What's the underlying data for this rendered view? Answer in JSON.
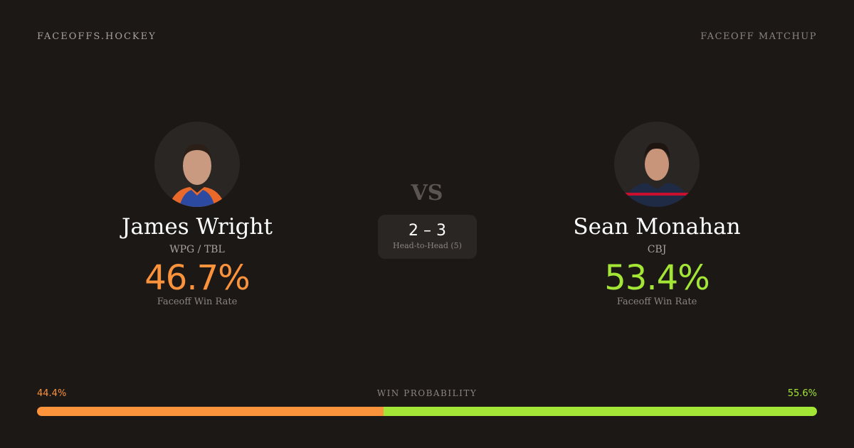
{
  "brand": "FACEOFFS.HOCKEY",
  "page_tag": "FACEOFF MATCHUP",
  "colors": {
    "left": "#fb923c",
    "right": "#a3e635"
  },
  "players": [
    {
      "name": "James Wright",
      "team": "WPG / TBL",
      "win_rate": "46.7%",
      "win_rate_label": "Faceoff Win Rate",
      "avatar": "player-headshot"
    },
    {
      "name": "Sean Monahan",
      "team": "CBJ",
      "win_rate": "53.4%",
      "win_rate_label": "Faceoff Win Rate",
      "avatar": "player-headshot"
    }
  ],
  "vs": "VS",
  "head_to_head": {
    "score": "2 – 3",
    "label": "Head-to-Head (5)"
  },
  "win_probability": {
    "label": "WIN PROBABILITY",
    "left": "44.4%",
    "right": "55.6%",
    "left_value": 44.4,
    "right_value": 55.6
  }
}
